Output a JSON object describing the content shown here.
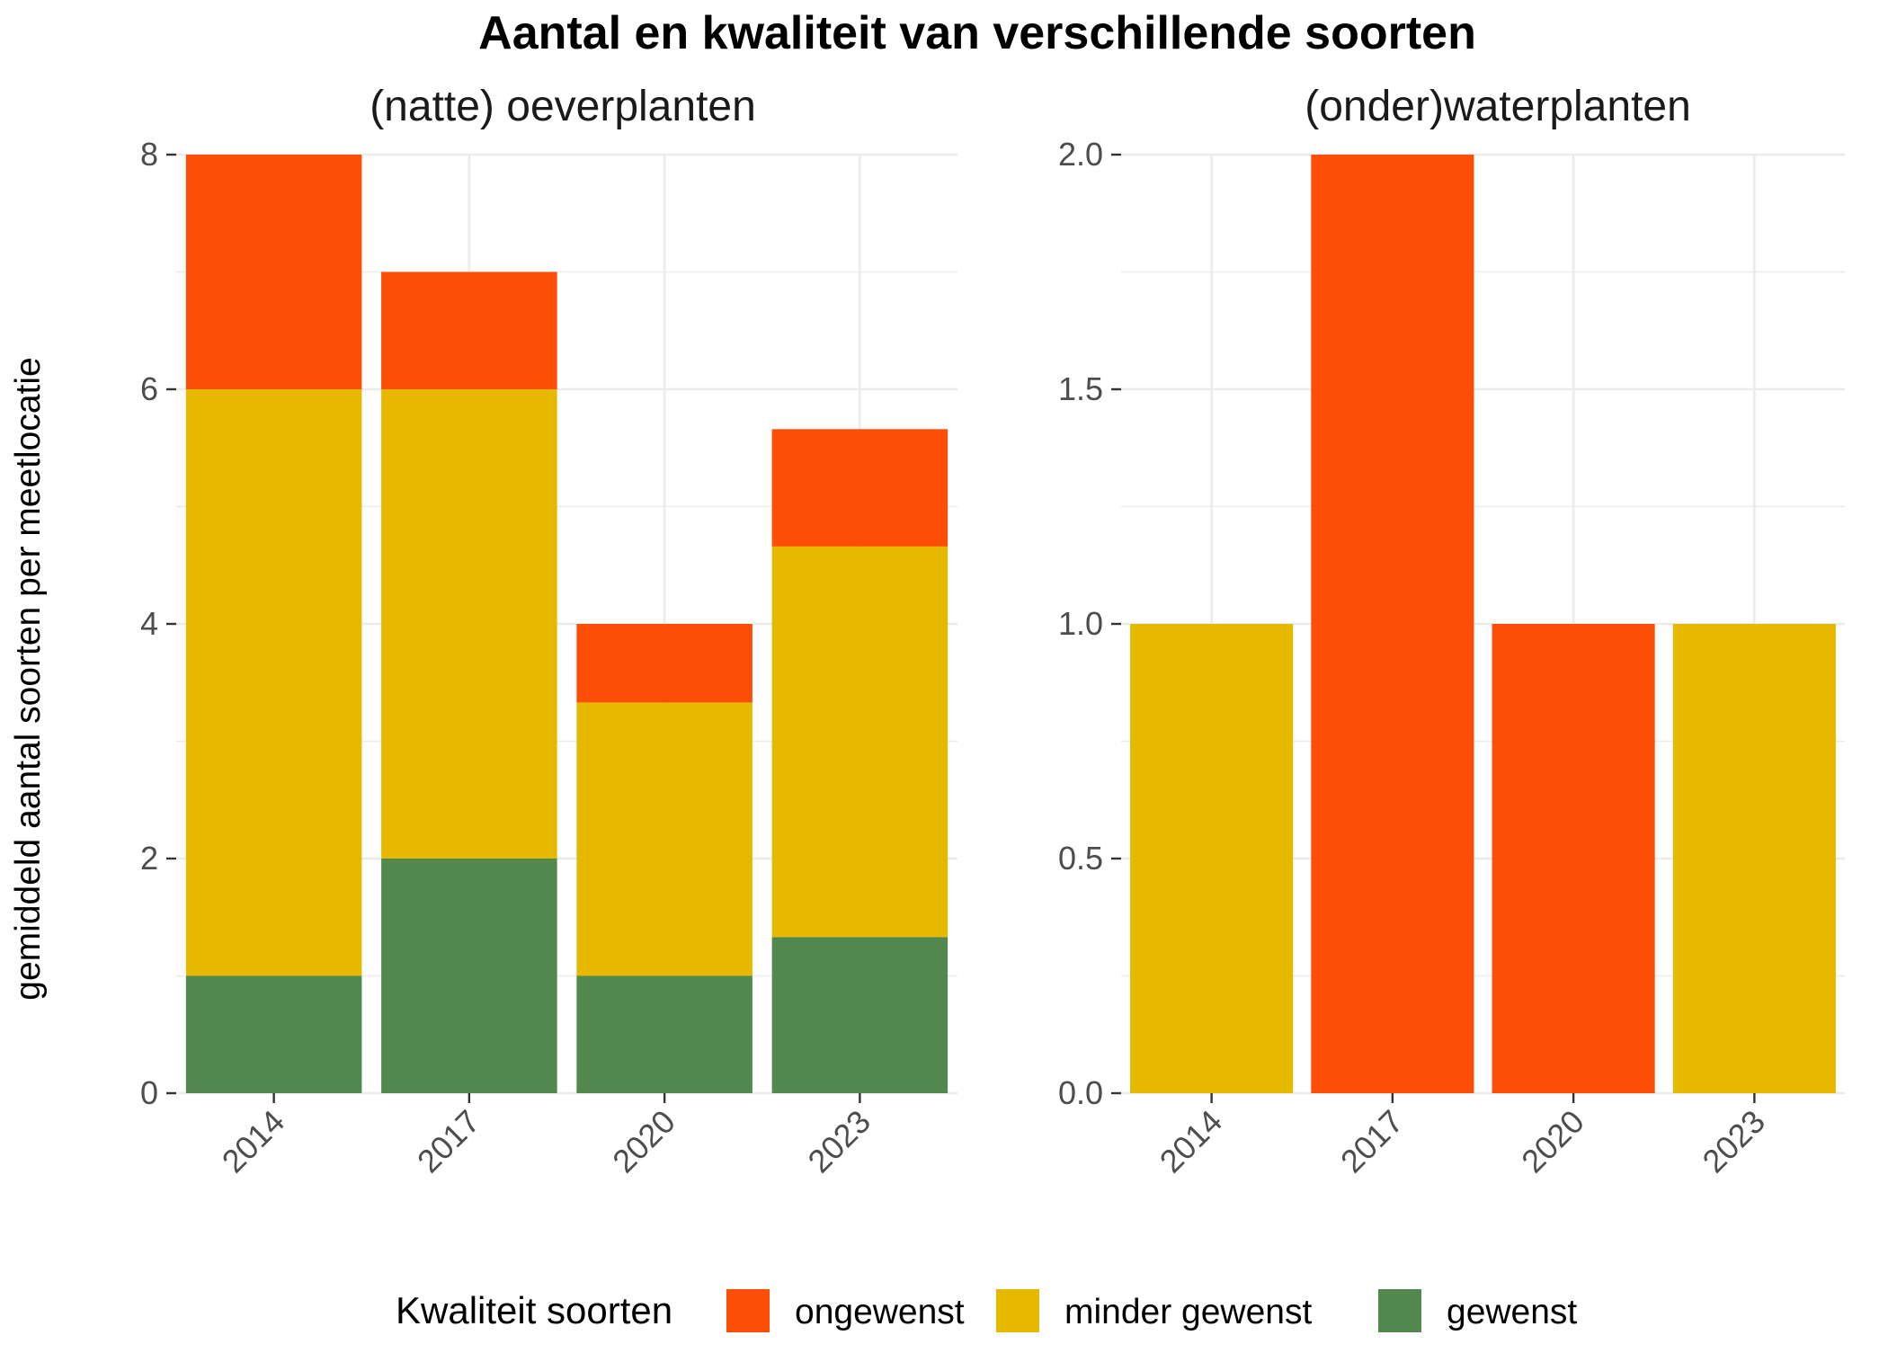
{
  "chart_data": [
    {
      "type": "bar",
      "stacked": true,
      "title": "Aantal en kwaliteit van verschillende soorten",
      "subtitle": "(natte) oeverplanten",
      "xlabel": "",
      "ylabel": "gemiddeld aantal soorten per meetlocatie",
      "categories": [
        "2014",
        "2017",
        "2020",
        "2023"
      ],
      "ylim": [
        0,
        8
      ],
      "yticks": [
        "0",
        "2",
        "4",
        "6",
        "8"
      ],
      "ytick_values": [
        0,
        2,
        4,
        6,
        8
      ],
      "grid": true,
      "series": [
        {
          "name": "gewenst",
          "values": [
            1,
            2,
            1,
            1.33
          ]
        },
        {
          "name": "minder gewenst",
          "values": [
            5,
            4,
            2.33,
            3.33
          ]
        },
        {
          "name": "ongewenst",
          "values": [
            2,
            1,
            0.67,
            1
          ]
        }
      ]
    },
    {
      "type": "bar",
      "stacked": true,
      "subtitle": "(onder)waterplanten",
      "xlabel": "",
      "categories": [
        "2014",
        "2017",
        "2020",
        "2023"
      ],
      "ylim": [
        0,
        2
      ],
      "yticks": [
        "0.0",
        "0.5",
        "1.0",
        "1.5",
        "2.0"
      ],
      "ytick_values": [
        0,
        0.5,
        1,
        1.5,
        2
      ],
      "grid": true,
      "series": [
        {
          "name": "gewenst",
          "values": [
            0,
            0,
            0,
            0
          ]
        },
        {
          "name": "minder gewenst",
          "values": [
            1,
            0,
            0,
            1
          ]
        },
        {
          "name": "ongewenst",
          "values": [
            0,
            2,
            1,
            0
          ]
        }
      ]
    }
  ],
  "legend": {
    "title": "Kwaliteit soorten",
    "placement": "bottom",
    "items": [
      {
        "label": "ongewenst",
        "series": "ongewenst"
      },
      {
        "label": "minder gewenst",
        "series": "minder gewenst"
      },
      {
        "label": "gewenst",
        "series": "gewenst"
      }
    ]
  },
  "colors": {
    "ongewenst": "#FC4E07",
    "minder gewenst": "#E7B800",
    "gewenst": "#52884E"
  }
}
